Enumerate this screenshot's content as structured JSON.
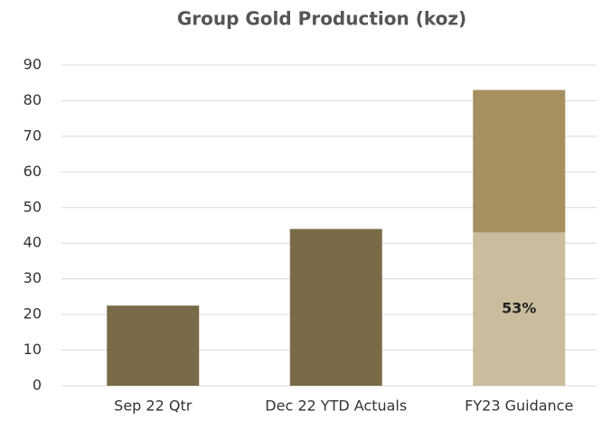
{
  "chart_data": {
    "type": "stacked_bar",
    "title": "Group Gold Production (koz)",
    "categories": [
      "Sep 22 Qtr",
      "Dec 22 YTD Actuals",
      "FY23 Guidance"
    ],
    "series": [
      {
        "values": [
          22.5,
          44,
          43
        ],
        "colors": [
          "#7a6b48",
          "#7a6b48",
          "#c9bd9e"
        ]
      },
      {
        "values": [
          null,
          null,
          40
        ],
        "color": "#a68f60"
      }
    ],
    "annotations": [
      {
        "text": "53%",
        "series": 0,
        "index": 2
      }
    ],
    "ylim": [
      0,
      90
    ],
    "yticks": [
      0,
      10,
      20,
      30,
      40,
      50,
      60,
      70,
      80,
      90
    ],
    "grid": true
  }
}
